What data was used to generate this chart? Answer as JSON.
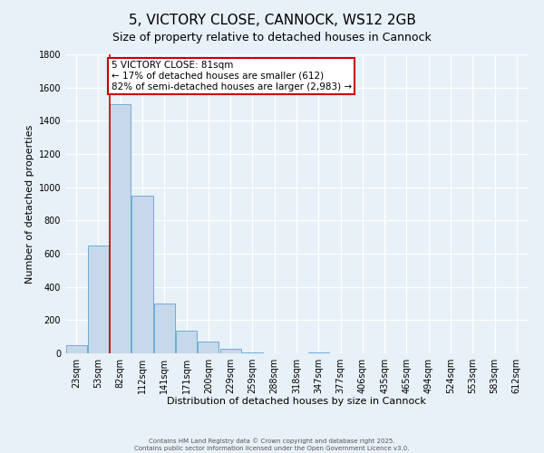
{
  "title": "5, VICTORY CLOSE, CANNOCK, WS12 2GB",
  "subtitle": "Size of property relative to detached houses in Cannock",
  "xlabel": "Distribution of detached houses by size in Cannock",
  "ylabel": "Number of detached properties",
  "bin_labels": [
    "23sqm",
    "53sqm",
    "82sqm",
    "112sqm",
    "141sqm",
    "171sqm",
    "200sqm",
    "229sqm",
    "259sqm",
    "288sqm",
    "318sqm",
    "347sqm",
    "377sqm",
    "406sqm",
    "435sqm",
    "465sqm",
    "494sqm",
    "524sqm",
    "553sqm",
    "583sqm",
    "612sqm"
  ],
  "bar_values": [
    50,
    650,
    1500,
    950,
    300,
    135,
    70,
    25,
    5,
    0,
    0,
    5,
    0,
    0,
    0,
    0,
    0,
    0,
    0,
    0,
    0
  ],
  "bar_color": "#c8d8eb",
  "bar_edge_color": "#6aaed6",
  "property_line_idx": 2,
  "annotation_line1": "5 VICTORY CLOSE: 81sqm",
  "annotation_line2": "← 17% of detached houses are smaller (612)",
  "annotation_line3": "82% of semi-detached houses are larger (2,983) →",
  "annotation_box_color": "#ffffff",
  "annotation_box_edge_color": "#cc0000",
  "red_line_color": "#cc0000",
  "ylim": [
    0,
    1800
  ],
  "yticks": [
    0,
    200,
    400,
    600,
    800,
    1000,
    1200,
    1400,
    1600,
    1800
  ],
  "footer1": "Contains HM Land Registry data © Crown copyright and database right 2025.",
  "footer2": "Contains public sector information licensed under the Open Government Licence v3.0.",
  "bg_color": "#e8f0f8",
  "grid_color": "#ffffff",
  "title_fontsize": 11,
  "subtitle_fontsize": 9,
  "axis_label_fontsize": 8,
  "tick_fontsize": 7,
  "annotation_fontsize": 7.5,
  "footer_fontsize": 5
}
